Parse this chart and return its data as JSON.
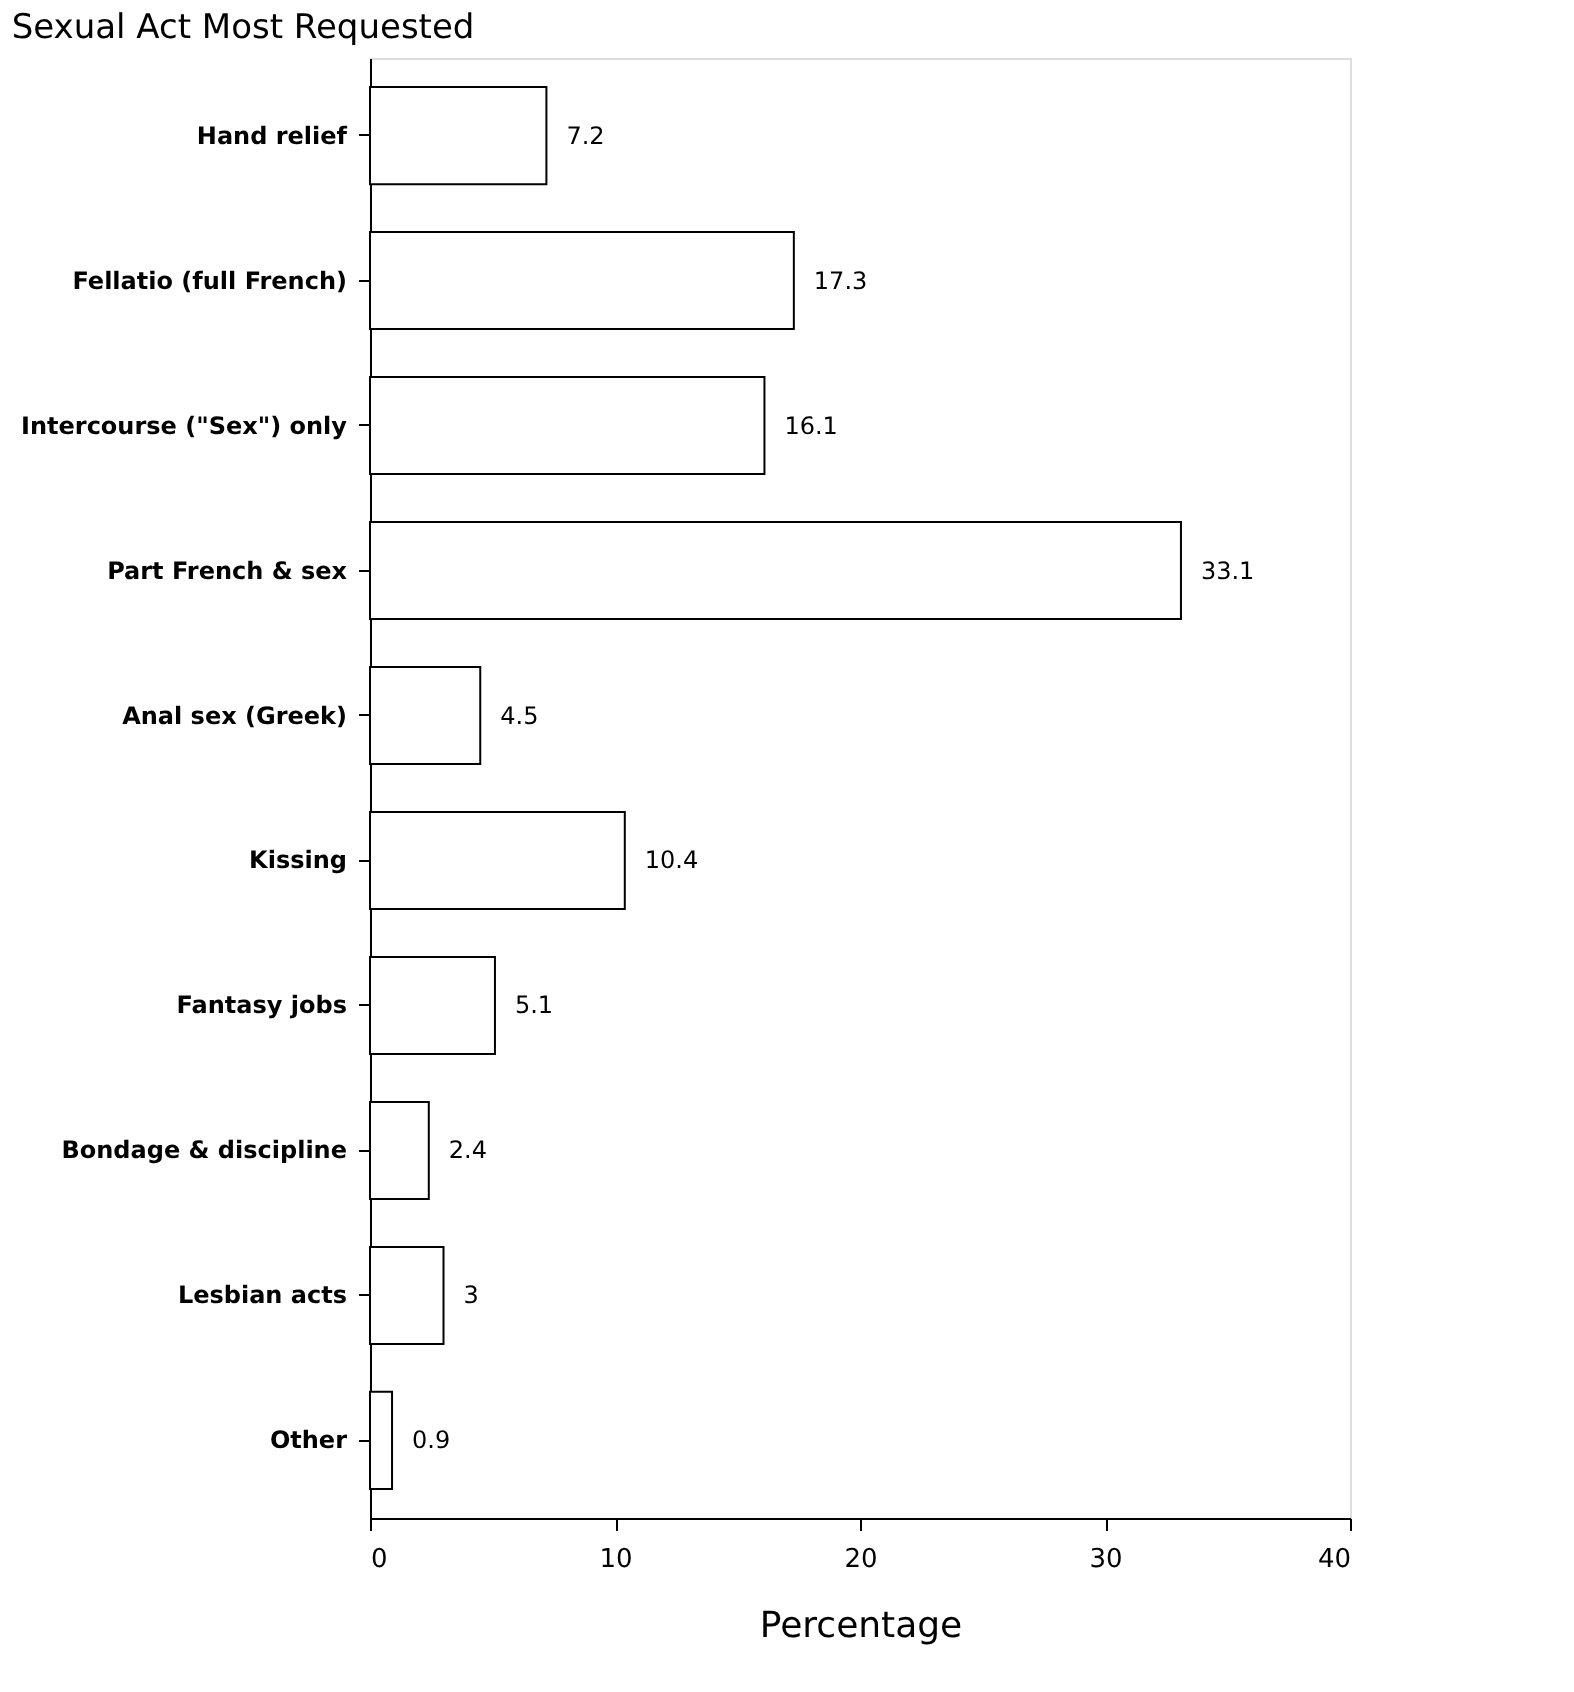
{
  "chart_data": {
    "type": "bar",
    "orientation": "horizontal",
    "title": "Sexual Act Most Requested",
    "xlabel": "Percentage",
    "categories": [
      "Hand relief",
      "Fellatio (full French)",
      "Intercourse  (\"Sex\") only",
      "Part French & sex",
      "Anal sex (Greek)",
      "Kissing",
      "Fantasy jobs",
      "Bondage & discipline",
      "Lesbian acts",
      "Other"
    ],
    "values": [
      7.2,
      17.3,
      16.1,
      33.1,
      4.5,
      10.4,
      5.1,
      2.4,
      3,
      0.9
    ],
    "value_labels": [
      "7.2",
      "17.3",
      "16.1",
      "33.1",
      "4.5",
      "10.4",
      "5.1",
      "2.4",
      "3",
      "0.9"
    ],
    "color": "#ffffff",
    "xlim": [
      0,
      40
    ],
    "xticks": [
      0,
      10,
      20,
      30,
      40
    ],
    "grid": false
  }
}
